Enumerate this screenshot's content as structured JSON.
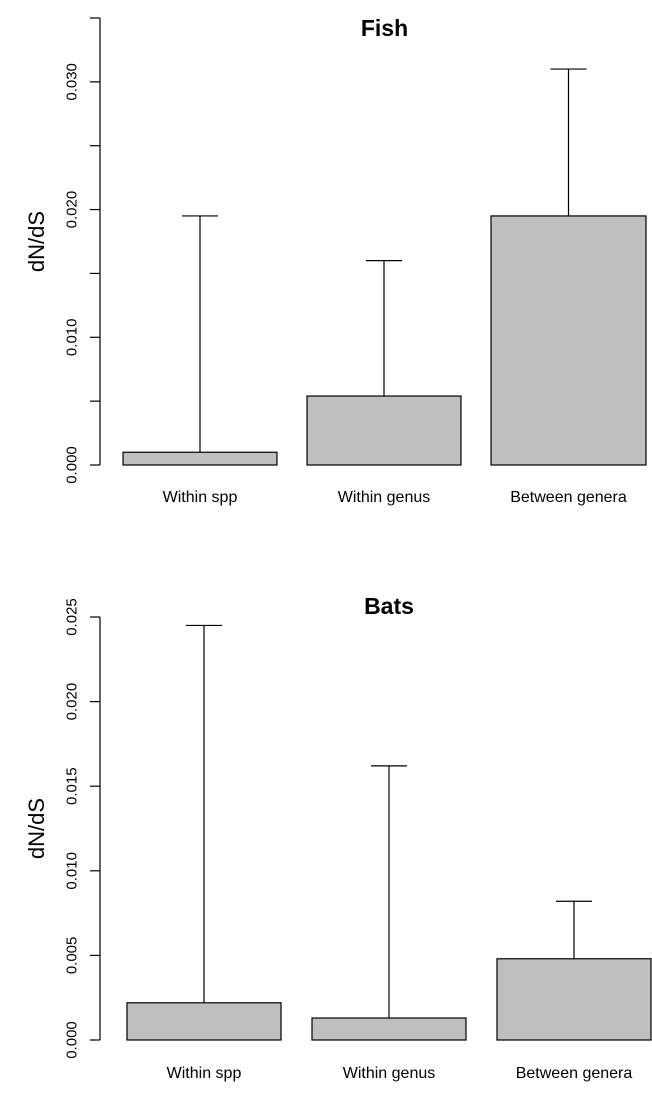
{
  "chart_data": [
    {
      "type": "bar",
      "title": "Fish",
      "ylabel": "dN/dS",
      "xlabel": "",
      "categories": [
        "Within spp",
        "Within genus",
        "Between genera"
      ],
      "values": [
        0.001,
        0.0054,
        0.0195
      ],
      "error_upper": [
        0.0195,
        0.016,
        0.031
      ],
      "ylim": [
        0,
        0.035
      ],
      "yticks": [
        0.0,
        0.01,
        0.02,
        0.03
      ],
      "ytick_labels": [
        "0.000",
        "0.010",
        "0.020",
        "0.030"
      ],
      "bar_color": "#bfbfbf",
      "grid": false
    },
    {
      "type": "bar",
      "title": "Bats",
      "ylabel": "dN/dS",
      "xlabel": "",
      "categories": [
        "Within spp",
        "Within genus",
        "Between genera"
      ],
      "values": [
        0.0022,
        0.0013,
        0.0048
      ],
      "error_upper": [
        0.0245,
        0.0162,
        0.0082
      ],
      "ylim": [
        0,
        0.025
      ],
      "yticks": [
        0.0,
        0.005,
        0.01,
        0.015,
        0.02,
        0.025
      ],
      "ytick_labels": [
        "0.000",
        "0.005",
        "0.010",
        "0.015",
        "0.020",
        "0.025"
      ],
      "bar_color": "#bfbfbf",
      "grid": false
    }
  ]
}
